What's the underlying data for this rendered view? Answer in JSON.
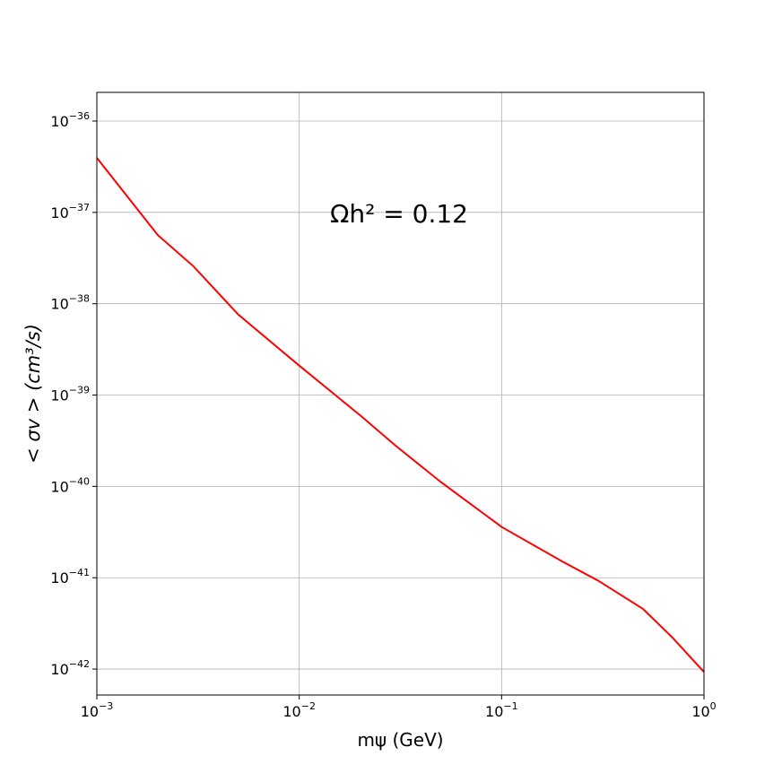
{
  "chart_data": {
    "type": "line",
    "x_label": "mψ (GeV)",
    "y_label": "< σv > (cm³/s)",
    "annotation": "Ωh² = 0.12",
    "x": [
      0.001,
      0.002,
      0.003,
      0.005,
      0.01,
      0.02,
      0.03,
      0.05,
      0.1,
      0.2,
      0.3,
      0.5,
      0.7,
      1
    ],
    "series": [
      {
        "color": "#ff0000",
        "values": [
          3.95e-37,
          5.65e-38,
          2.57e-38,
          7.6e-39,
          2.1e-39,
          6e-40,
          2.78e-40,
          1.12e-40,
          3.6e-41,
          1.5e-41,
          9.3e-42,
          4.55e-42,
          2.2e-42,
          9.3e-43
        ]
      }
    ],
    "xlim": [
      0.001,
      1
    ],
    "ylim": [
      5.2e-43,
      2.06e-36
    ],
    "x_log": true,
    "y_log": true,
    "grid": true,
    "xticks": [
      {
        "value": 0.001,
        "label": "10−3"
      },
      {
        "value": 0.01,
        "label": "10−2"
      },
      {
        "value": 0.1,
        "label": "10−1"
      },
      {
        "value": 1,
        "label": "100"
      }
    ],
    "yticks": [
      {
        "value": 1e-42,
        "label": "10−42"
      },
      {
        "value": 1e-41,
        "label": "10−41"
      },
      {
        "value": 1e-40,
        "label": "10−40"
      },
      {
        "value": 1e-39,
        "label": "10−39"
      },
      {
        "value": 1e-38,
        "label": "10−38"
      },
      {
        "value": 1e-37,
        "label": "10−37"
      },
      {
        "value": 1e-36,
        "label": "10−36"
      }
    ]
  }
}
